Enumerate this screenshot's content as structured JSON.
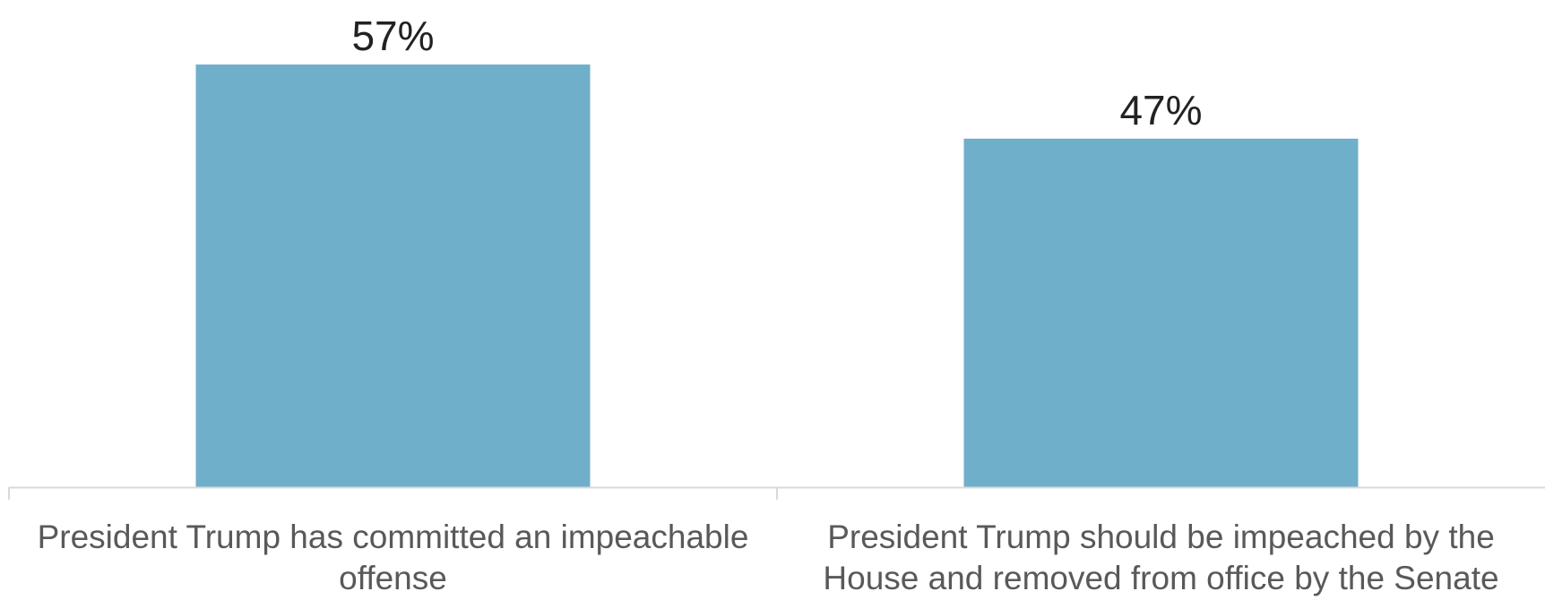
{
  "chart_data": {
    "type": "bar",
    "title": "",
    "xlabel": "",
    "ylabel": "",
    "ylim": [
      0,
      60
    ],
    "grid": false,
    "legend": "none",
    "bar_color": "#70AFC9",
    "axis_color": "#D9D9D9",
    "categories": [
      "President Trump has committed an impeachable offense",
      "President Trump should be impeached by the House and removed from office by the Senate"
    ],
    "category_label_lines": [
      [
        "President Trump has committed an impeachable",
        "offense"
      ],
      [
        "President Trump should be impeached by the",
        "House and removed from office by the Senate"
      ]
    ],
    "values": [
      57,
      47
    ],
    "value_labels": [
      "57%",
      "47%"
    ]
  }
}
